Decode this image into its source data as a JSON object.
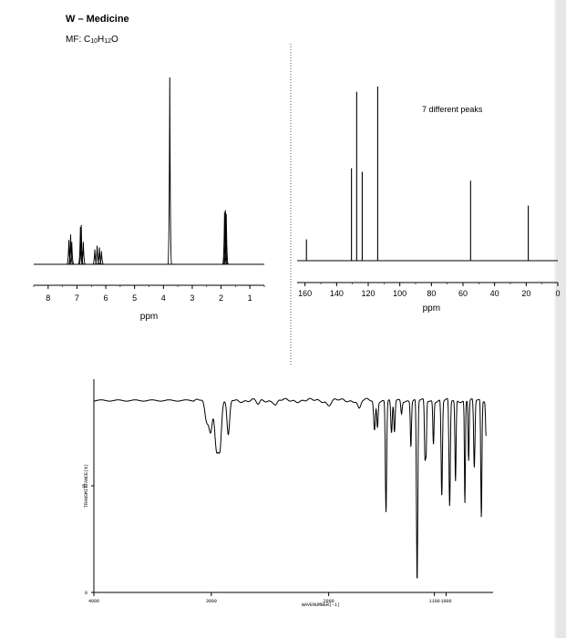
{
  "header": {
    "title": "W – Medicine",
    "mf_prefix": "MF: C",
    "mf_c": "10",
    "mf_h_label": "H",
    "mf_h": "12",
    "mf_o": "O"
  },
  "chart_data": [
    {
      "type": "line",
      "title": "",
      "xlabel": "ppm",
      "ylabel": "",
      "xlim": [
        8.5,
        0.5
      ],
      "x_reversed": true,
      "ticks": [
        "8",
        "7",
        "6",
        "5",
        "4",
        "3",
        "2",
        "1"
      ],
      "tick_values": [
        8,
        7,
        6,
        5,
        4,
        3,
        2,
        1
      ],
      "peaks": [
        {
          "x": 7.28,
          "h": 0.13
        },
        {
          "x": 7.22,
          "h": 0.16
        },
        {
          "x": 7.18,
          "h": 0.12
        },
        {
          "x": 6.88,
          "h": 0.2
        },
        {
          "x": 6.85,
          "h": 0.21
        },
        {
          "x": 6.78,
          "h": 0.12
        },
        {
          "x": 6.38,
          "h": 0.08
        },
        {
          "x": 6.3,
          "h": 0.1
        },
        {
          "x": 6.22,
          "h": 0.09
        },
        {
          "x": 6.15,
          "h": 0.07
        },
        {
          "x": 3.78,
          "h": 1.0
        },
        {
          "x": 1.88,
          "h": 0.28
        },
        {
          "x": 1.85,
          "h": 0.29
        },
        {
          "x": 1.82,
          "h": 0.27
        }
      ]
    },
    {
      "type": "line",
      "title": "",
      "annotation": "7 different peaks",
      "xlabel": "ppm",
      "ylabel": "",
      "xlim": [
        165,
        0
      ],
      "x_reversed": true,
      "ticks": [
        "160",
        "140",
        "120",
        "100",
        "80",
        "60",
        "40",
        "20",
        "0"
      ],
      "tick_values": [
        160,
        140,
        120,
        100,
        80,
        60,
        40,
        20,
        0
      ],
      "peaks": [
        {
          "x": 159.1,
          "h": 0.12
        },
        {
          "x": 130.6,
          "h": 0.52
        },
        {
          "x": 127.3,
          "h": 0.95
        },
        {
          "x": 123.8,
          "h": 0.5
        },
        {
          "x": 114.0,
          "h": 0.98
        },
        {
          "x": 55.2,
          "h": 0.45
        },
        {
          "x": 18.7,
          "h": 0.31
        }
      ]
    },
    {
      "type": "line",
      "title": "",
      "xlabel": "WAVENUMBER(-1)",
      "ylabel": "TRANSMITTANCE(%)",
      "xlim": [
        4000,
        600
      ],
      "x_reversed": true,
      "ylim": [
        0,
        100
      ],
      "ticks": [
        "4000",
        "3000",
        "2000",
        "1100",
        "1000"
      ],
      "tick_values": [
        4000,
        3000,
        2000,
        1100,
        1000
      ],
      "yticks": [
        "0",
        "50"
      ],
      "ytick_values": [
        0,
        50
      ],
      "baseline": 90,
      "bands": [
        {
          "x": 3040,
          "min": 80,
          "w": 22
        },
        {
          "x": 3005,
          "min": 76,
          "w": 20
        },
        {
          "x": 2955,
          "min": 68,
          "w": 22
        },
        {
          "x": 2925,
          "min": 70,
          "w": 18
        },
        {
          "x": 2855,
          "min": 73,
          "w": 16
        },
        {
          "x": 2600,
          "min": 88,
          "w": 20
        },
        {
          "x": 2450,
          "min": 88,
          "w": 20
        },
        {
          "x": 2000,
          "min": 88,
          "w": 25
        },
        {
          "x": 1740,
          "min": 86,
          "w": 18
        },
        {
          "x": 1610,
          "min": 76,
          "w": 10
        },
        {
          "x": 1585,
          "min": 78,
          "w": 8
        },
        {
          "x": 1512,
          "min": 38,
          "w": 8
        },
        {
          "x": 1465,
          "min": 74,
          "w": 9
        },
        {
          "x": 1440,
          "min": 75,
          "w": 8
        },
        {
          "x": 1380,
          "min": 84,
          "w": 8
        },
        {
          "x": 1300,
          "min": 69,
          "w": 7
        },
        {
          "x": 1247,
          "min": 5,
          "w": 8
        },
        {
          "x": 1180,
          "min": 63,
          "w": 7
        },
        {
          "x": 1170,
          "min": 68,
          "w": 6
        },
        {
          "x": 1108,
          "min": 70,
          "w": 7
        },
        {
          "x": 1037,
          "min": 45,
          "w": 8
        },
        {
          "x": 970,
          "min": 40,
          "w": 8
        },
        {
          "x": 920,
          "min": 52,
          "w": 7
        },
        {
          "x": 840,
          "min": 42,
          "w": 6
        },
        {
          "x": 808,
          "min": 62,
          "w": 6
        },
        {
          "x": 760,
          "min": 58,
          "w": 8
        },
        {
          "x": 700,
          "min": 35,
          "w": 7
        },
        {
          "x": 660,
          "min": 74,
          "w": 6
        }
      ]
    }
  ]
}
